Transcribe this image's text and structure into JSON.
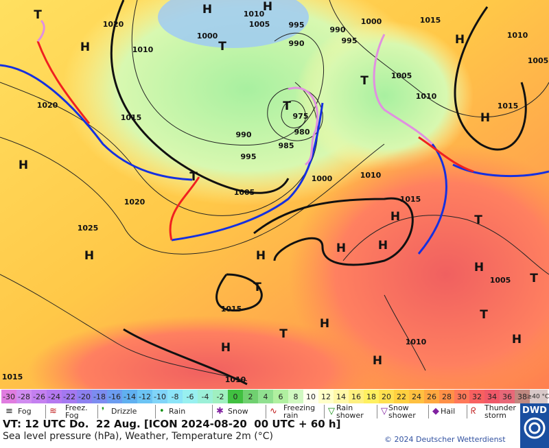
{
  "map": {
    "pressure_labels": [
      "1020",
      "1010",
      "1005",
      "995",
      "1000",
      "990",
      "990",
      "995",
      "1000",
      "1015",
      "1010",
      "1005",
      "1010",
      "1005",
      "1010",
      "1015",
      "1020",
      "1015",
      "975",
      "980",
      "990",
      "985",
      "995",
      "1000",
      "1010",
      "1005",
      "1015",
      "1020",
      "1025",
      "1005",
      "1015",
      "1010",
      "1015",
      "1010"
    ],
    "high_centers": [
      "H",
      "H",
      "H",
      "H",
      "H",
      "H",
      "H",
      "H",
      "H",
      "H",
      "H",
      "H",
      "H",
      "H",
      "H",
      "H"
    ],
    "low_centers": [
      "T",
      "T",
      "T",
      "T",
      "T",
      "T",
      "T",
      "T",
      "T",
      "T"
    ]
  },
  "temperature_scale": {
    "labels": [
      -30,
      -28,
      -26,
      -24,
      -22,
      -20,
      -18,
      -16,
      -14,
      -12,
      -10,
      -8,
      -6,
      -4,
      -2,
      0,
      2,
      4,
      6,
      8,
      10,
      12,
      14,
      16,
      18,
      20,
      22,
      24,
      26,
      28,
      30,
      32,
      34,
      36,
      38
    ],
    "colors": [
      "#e07ce0",
      "#d08cf0",
      "#c480f0",
      "#b478f0",
      "#a478f0",
      "#8c80f0",
      "#7c8cf0",
      "#6c9cf0",
      "#60b0f0",
      "#6cc4f4",
      "#80d4f8",
      "#8ce4f8",
      "#98f0f0",
      "#9cf0d8",
      "#a0f0c0",
      "#40c040",
      "#70d070",
      "#90e090",
      "#b0f0a0",
      "#d0f8c0",
      "#fffff0",
      "#ffffc8",
      "#fff8a8",
      "#fff080",
      "#fff060",
      "#ffe050",
      "#ffd040",
      "#ffc040",
      "#ffa840",
      "#ff9048",
      "#ff7858",
      "#f86060",
      "#f05868",
      "#e86878",
      "#c08880"
    ],
    "top_label": "≥40 °C",
    "top_color": "#d8c8c8"
  },
  "weather_legend": [
    "Fog",
    "Freez. Fog",
    "Drizzle",
    "Rain",
    "Snow",
    "Freezing rain",
    "Rain shower",
    "Snow shower",
    "Hail",
    "Thunder storm"
  ],
  "footer": {
    "valid_time": "VT: 12 UTC Do.  22 Aug. [ICON 2024-08-20  00 UTC + 60 h]",
    "description": "Sea level pressure (hPa), Weather, Temperature 2m (°C)",
    "copyright": "© 2024 Deutscher Wetterdienst",
    "logo": "DWD"
  }
}
